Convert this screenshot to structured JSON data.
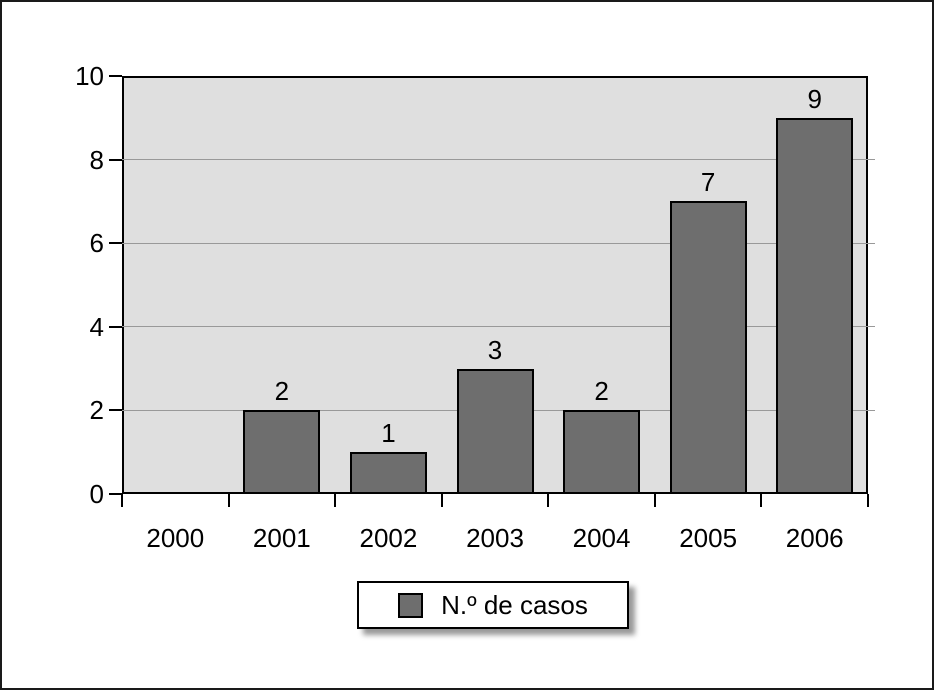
{
  "chart_data": {
    "type": "bar",
    "title": "",
    "xlabel": "",
    "ylabel": "",
    "categories": [
      "2000",
      "2001",
      "2002",
      "2003",
      "2004",
      "2005",
      "2006"
    ],
    "series": [
      {
        "name": "N.º de casos",
        "values": [
          0,
          2,
          1,
          3,
          2,
          7,
          9
        ]
      }
    ],
    "value_labels_shown": [
      "",
      "2",
      "1",
      "3",
      "2",
      "7",
      "9"
    ],
    "ylim": [
      0,
      10
    ],
    "yticks": [
      0,
      2,
      4,
      6,
      8,
      10
    ],
    "gridline_values": [
      2,
      4,
      6,
      8
    ],
    "grid": true,
    "legend": {
      "label": "N.º de casos",
      "position": "bottom-center"
    }
  },
  "colors": {
    "bar_fill": "#6e6e6e",
    "bar_border": "#000000",
    "plot_background": "#dfdfdf",
    "gridline": "#999999",
    "axis": "#000000",
    "outer_border": "#1a1a1a",
    "page_background": "#ffffff",
    "label_text": "#000000",
    "legend_background": "#ffffff"
  }
}
